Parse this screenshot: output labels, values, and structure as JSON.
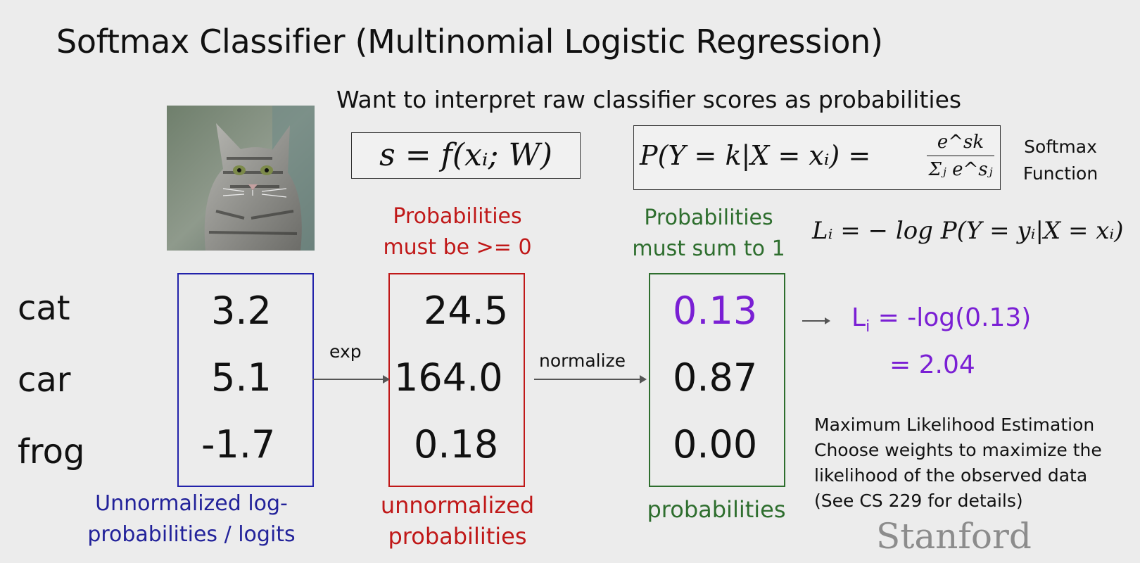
{
  "title": "Softmax Classifier (Multinomial Logistic Regression)",
  "subtitle": "Want to interpret raw classifier scores as probabilities",
  "equations": {
    "score_fn": "s = f(xᵢ; W)",
    "softmax_lhs": "P(Y = k|X = xᵢ) =",
    "softmax_num": "e^sk",
    "softmax_den": "Σⱼ e^sⱼ",
    "softmax_label_1": "Softmax",
    "softmax_label_2": "Function",
    "loss": "Lᵢ = − log P(Y = yᵢ|X = xᵢ)"
  },
  "classes": [
    "cat",
    "car",
    "frog"
  ],
  "logits": [
    "3.2",
    "5.1",
    "-1.7"
  ],
  "exp_values": [
    "24.5",
    "164.0",
    "0.18"
  ],
  "probabilities": [
    "0.13",
    "0.87",
    "0.00"
  ],
  "arrows": {
    "exp": "exp",
    "normalize": "normalize"
  },
  "annotations": {
    "nonneg_1": "Probabilities",
    "nonneg_2": "must be >= 0",
    "sum1_1": "Probabilities",
    "sum1_2": "must sum to 1",
    "logits_1": "Unnormalized log-",
    "logits_2": "probabilities / logits",
    "unnorm_1": "unnormalized",
    "unnorm_2": "probabilities",
    "probs": "probabilities"
  },
  "loss_result": {
    "line1_prefix": "L",
    "line1_sub": "i",
    "line1_suffix": " = -log(0.13)",
    "line2": "= 2.04"
  },
  "mle_notes": [
    "Maximum Likelihood Estimation",
    "Choose weights to maximize the",
    "likelihood of the observed data",
    "(See CS 229 for details)"
  ],
  "logo": "Stanford",
  "colors": {
    "logits": "#22229a",
    "exp": "#c01818",
    "probs": "#2e6e2e",
    "highlight": "#7a1fd4"
  }
}
